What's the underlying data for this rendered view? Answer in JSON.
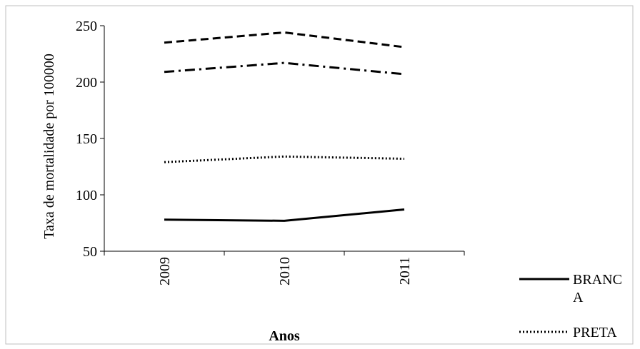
{
  "chart_data": {
    "type": "line",
    "title": "",
    "xlabel": "Anos",
    "ylabel": "Taxa de mortalidade por 100000",
    "ylim": [
      50,
      250
    ],
    "yticks": [
      50,
      100,
      150,
      200,
      250
    ],
    "grid": false,
    "legend_position": "right",
    "categories": [
      "2009",
      "2010",
      "2011"
    ],
    "series": [
      {
        "name": "BRANCA",
        "legend_lines": [
          "BRANC",
          "A"
        ],
        "values": [
          78,
          77,
          87
        ],
        "style": "solid"
      },
      {
        "name": "PRETA",
        "legend_lines": [
          "PRETA"
        ],
        "values": [
          129,
          134,
          132
        ],
        "style": "dotted"
      },
      {
        "name": "",
        "values": [
          209,
          217,
          207
        ],
        "style": "dashdot"
      },
      {
        "name": "",
        "values": [
          235,
          244,
          231
        ],
        "style": "dashed"
      }
    ]
  },
  "colors": {
    "line": "#000000",
    "frame": "#bfbfbf",
    "background": "#ffffff"
  }
}
